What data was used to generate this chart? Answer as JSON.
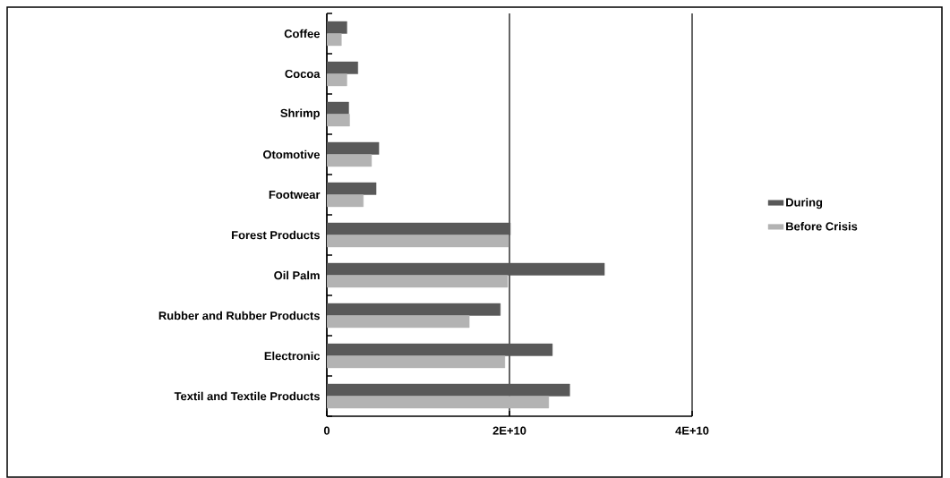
{
  "chart_data": {
    "type": "bar",
    "orientation": "horizontal",
    "categories": [
      "Coffee",
      "Cocoa",
      "Shrimp",
      "Otomotive",
      "Footwear",
      "Forest Products",
      "Oil Palm",
      "Rubber and Rubber Products",
      "Electronic",
      "Textil and Textile Products"
    ],
    "series": [
      {
        "name": "During",
        "color": "#595959",
        "values": [
          2200000000.0,
          3400000000.0,
          2400000000.0,
          5700000000.0,
          5400000000.0,
          20100000000.0,
          30400000000.0,
          19000000000.0,
          24700000000.0,
          26600000000.0
        ]
      },
      {
        "name": "Before Crisis",
        "color": "#b3b3b3",
        "values": [
          1600000000.0,
          2200000000.0,
          2500000000.0,
          4900000000.0,
          4000000000.0,
          19900000000.0,
          19800000000.0,
          15600000000.0,
          19500000000.0,
          24300000000.0
        ]
      }
    ],
    "xlim": [
      0,
      40000000000.0
    ],
    "xticks": [
      0,
      {
        "value": 20000000000.0,
        "label": "2E+10"
      },
      {
        "value": 40000000000.0,
        "label": "4E+10"
      }
    ],
    "grid": "x",
    "legend": "right"
  }
}
